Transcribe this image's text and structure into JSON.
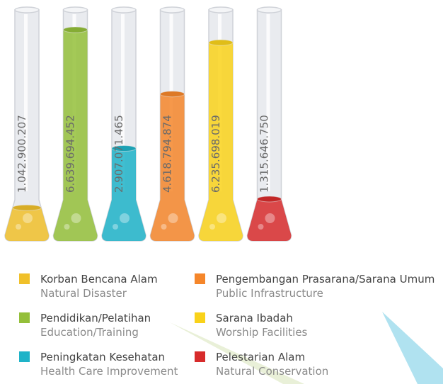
{
  "chart_data": {
    "type": "test-tube",
    "categories": [
      "Korban Bencana Alam",
      "Pendidikan/Pelatihan",
      "Peningkatan Kesehatan",
      "Pengembangan Prasarana/Sarana Umum",
      "Sarana Ibadah",
      "Pelestarian Alam"
    ],
    "categories_en": [
      "Natural Disaster",
      "Education/Training",
      "Health Care Improvement",
      "Public Infrastructure",
      "Worship Facilities",
      "Natural Conservation"
    ],
    "values": [
      1042900207,
      6639694452,
      2907071465,
      4618794874,
      6235698019,
      1315646750
    ],
    "value_labels": [
      "1.042.900.207",
      "6.639.694.452",
      "2.907.071.465",
      "4.618.794.874",
      "6.235.698.019",
      "1.315.646.750"
    ],
    "colors": [
      "#f0c02a",
      "#94bf3a",
      "#1fb3c8",
      "#f5862a",
      "#f9d21a",
      "#d72b2b"
    ]
  }
}
